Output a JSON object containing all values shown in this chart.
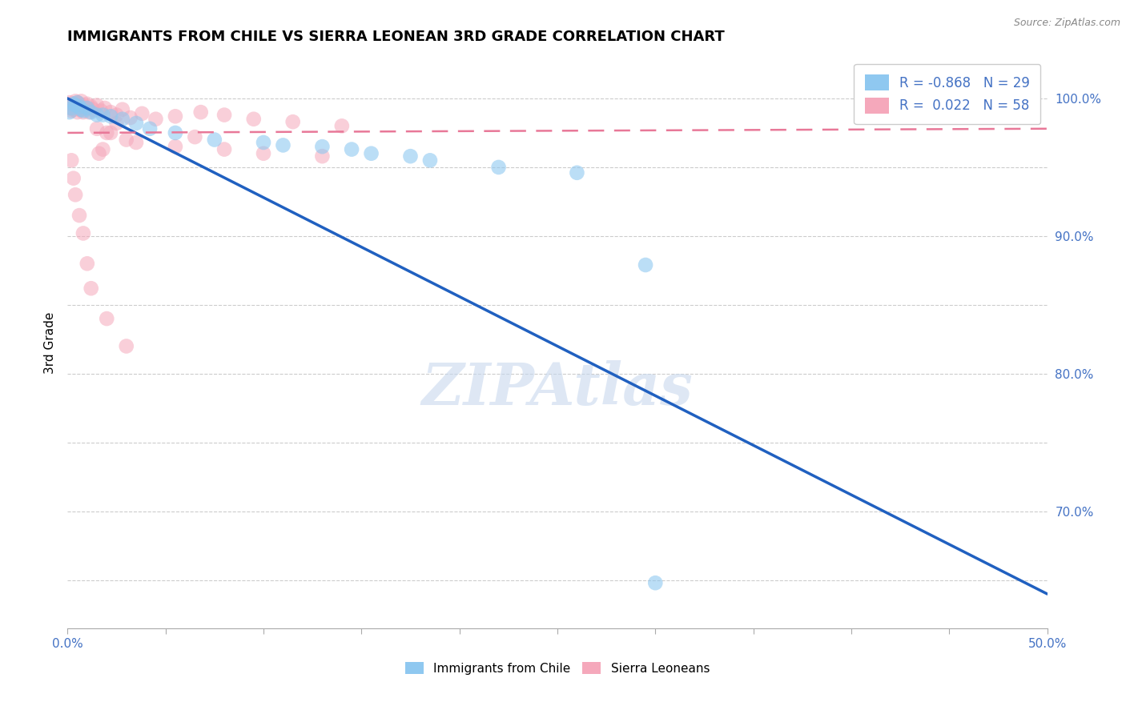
{
  "title": "IMMIGRANTS FROM CHILE VS SIERRA LEONEAN 3RD GRADE CORRELATION CHART",
  "source": "Source: ZipAtlas.com",
  "ylabel": "3rd Grade",
  "xlim": [
    0.0,
    0.5
  ],
  "ylim": [
    0.615,
    1.03
  ],
  "xticks": [
    0.0,
    0.05,
    0.1,
    0.15,
    0.2,
    0.25,
    0.3,
    0.35,
    0.4,
    0.45,
    0.5
  ],
  "ytick_positions": [
    0.65,
    0.7,
    0.75,
    0.8,
    0.85,
    0.9,
    0.95,
    1.0
  ],
  "ytick_labels_map": {
    "0.70": "70.0%",
    "0.80": "80.0%",
    "0.90": "90.0%",
    "1.00": "100.0%"
  },
  "blue_color": "#8FC8F0",
  "pink_color": "#F5A8BB",
  "blue_line_color": "#2060C0",
  "pink_line_color": "#E87898",
  "watermark": "ZIPAtlas",
  "legend_R_blue": "-0.868",
  "legend_N_blue": "29",
  "legend_R_pink": "0.022",
  "legend_N_pink": "58",
  "blue_points_x": [
    0.001,
    0.002,
    0.003,
    0.004,
    0.005,
    0.006,
    0.007,
    0.008,
    0.01,
    0.012,
    0.015,
    0.018,
    0.022,
    0.028,
    0.035,
    0.042,
    0.055,
    0.075,
    0.1,
    0.13,
    0.155,
    0.185,
    0.22,
    0.26,
    0.11,
    0.145,
    0.175,
    0.295,
    0.3
  ],
  "blue_points_y": [
    0.99,
    0.993,
    0.996,
    0.995,
    0.997,
    0.994,
    0.992,
    0.991,
    0.993,
    0.99,
    0.988,
    0.988,
    0.987,
    0.985,
    0.982,
    0.978,
    0.975,
    0.97,
    0.968,
    0.965,
    0.96,
    0.955,
    0.95,
    0.946,
    0.966,
    0.963,
    0.958,
    0.879,
    0.648
  ],
  "pink_points_x": [
    0.001,
    0.001,
    0.002,
    0.002,
    0.003,
    0.003,
    0.004,
    0.004,
    0.005,
    0.005,
    0.006,
    0.006,
    0.007,
    0.007,
    0.008,
    0.008,
    0.009,
    0.01,
    0.011,
    0.012,
    0.013,
    0.015,
    0.017,
    0.019,
    0.022,
    0.025,
    0.028,
    0.032,
    0.038,
    0.045,
    0.055,
    0.068,
    0.08,
    0.095,
    0.115,
    0.14,
    0.015,
    0.02,
    0.025,
    0.03,
    0.035,
    0.055,
    0.065,
    0.08,
    0.1,
    0.13,
    0.02,
    0.03,
    0.01,
    0.012,
    0.008,
    0.006,
    0.004,
    0.003,
    0.002,
    0.016,
    0.018,
    0.022
  ],
  "pink_points_y": [
    0.997,
    0.993,
    0.995,
    0.991,
    0.996,
    0.992,
    0.998,
    0.994,
    0.997,
    0.99,
    0.996,
    0.992,
    0.998,
    0.993,
    0.995,
    0.99,
    0.993,
    0.996,
    0.99,
    0.994,
    0.992,
    0.995,
    0.991,
    0.993,
    0.99,
    0.988,
    0.992,
    0.986,
    0.989,
    0.985,
    0.987,
    0.99,
    0.988,
    0.985,
    0.983,
    0.98,
    0.978,
    0.975,
    0.982,
    0.97,
    0.968,
    0.965,
    0.972,
    0.963,
    0.96,
    0.958,
    0.84,
    0.82,
    0.88,
    0.862,
    0.902,
    0.915,
    0.93,
    0.942,
    0.955,
    0.96,
    0.963,
    0.975
  ],
  "blue_trend_x": [
    0.0,
    0.5
  ],
  "blue_trend_y": [
    1.0,
    0.64
  ],
  "pink_trend_x": [
    0.0,
    0.5
  ],
  "pink_trend_y": [
    0.975,
    0.978
  ]
}
